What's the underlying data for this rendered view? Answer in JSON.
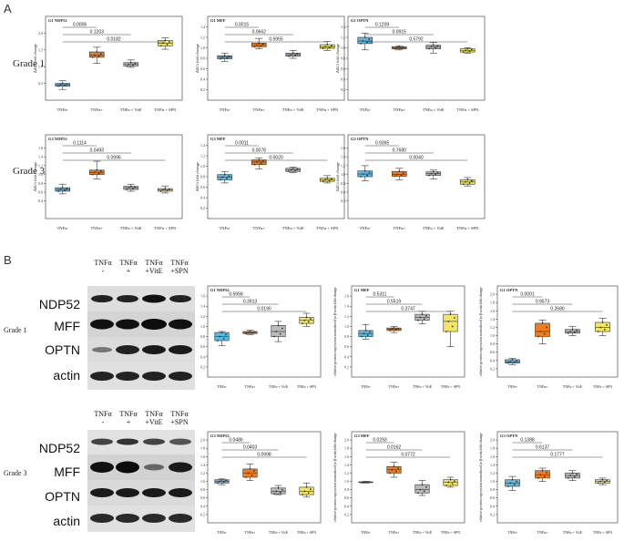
{
  "panel_labels": {
    "a": "A",
    "b": "B"
  },
  "grade_labels": {
    "g1": "Grade 1",
    "g3": "Grade 3"
  },
  "western_blot": {
    "header_top": [
      "TNFα",
      "TNFα",
      "TNFα",
      "TNFα"
    ],
    "header_bottom": [
      "-",
      "+",
      "+VitE",
      "+SPN"
    ],
    "proteins": [
      "NDP52",
      "MFF",
      "OPTN",
      "actin"
    ]
  },
  "colors": {
    "tnf_minus": "#5bbbe6",
    "tnf_plus": "#f07c1b",
    "tnf_vite": "#bbbbbb",
    "tnf_spn": "#f2e75f"
  },
  "chart_data": [
    {
      "type": "box",
      "panel": "A",
      "grade": "Grade 1",
      "title": "G1 NDP52",
      "ylabel": "ΔΔCt fold change",
      "categories": [
        "TNFα-",
        "TNFα+",
        "TNFα + VitE",
        "TNFα + SPN"
      ],
      "ylim": [
        0,
        2.5
      ],
      "yticks": [
        0.5,
        1.0,
        1.5,
        2.0
      ],
      "boxes": [
        {
          "min": 0.32,
          "q1": 0.42,
          "median": 0.46,
          "q3": 0.5,
          "max": 0.58
        },
        {
          "min": 1.1,
          "q1": 1.28,
          "median": 1.34,
          "q3": 1.44,
          "max": 1.58
        },
        {
          "min": 0.98,
          "q1": 1.02,
          "median": 1.07,
          "q3": 1.12,
          "max": 1.2
        },
        {
          "min": 1.52,
          "q1": 1.62,
          "median": 1.7,
          "q3": 1.78,
          "max": 1.86
        }
      ],
      "comparisons": [
        {
          "from": 0,
          "to": 1,
          "p": "0.0006"
        },
        {
          "from": 0,
          "to": 2,
          "p": "0.1203"
        },
        {
          "from": 0,
          "to": 3,
          "p": "0.0182"
        }
      ]
    },
    {
      "type": "box",
      "panel": "A",
      "grade": "Grade 1",
      "title": "G1 MFF",
      "ylabel": "ΔΔCt fold change",
      "categories": [
        "TNFα-",
        "TNFα+",
        "TNFα + VitE",
        "TNFα + SPN"
      ],
      "ylim": [
        0,
        1.6
      ],
      "yticks": [
        0.2,
        0.4,
        0.6,
        0.8,
        1.0,
        1.2,
        1.4
      ],
      "boxes": [
        {
          "min": 0.74,
          "q1": 0.79,
          "median": 0.82,
          "q3": 0.85,
          "max": 0.9
        },
        {
          "min": 0.98,
          "q1": 1.02,
          "median": 1.05,
          "q3": 1.09,
          "max": 1.18
        },
        {
          "min": 0.8,
          "q1": 0.84,
          "median": 0.87,
          "q3": 0.9,
          "max": 0.95
        },
        {
          "min": 0.95,
          "q1": 0.99,
          "median": 1.02,
          "q3": 1.06,
          "max": 1.12
        }
      ],
      "comparisons": [
        {
          "from": 0,
          "to": 1,
          "p": "0.0015"
        },
        {
          "from": 0,
          "to": 2,
          "p": "0.0662"
        },
        {
          "from": 0,
          "to": 3,
          "p": "0.5955"
        }
      ]
    },
    {
      "type": "box",
      "panel": "A",
      "grade": "Grade 1",
      "title": "G1 OPTN",
      "ylabel": "ΔΔCt fold change",
      "categories": [
        "TNFα-",
        "TNFα+",
        "TNFα + VitE",
        "TNFα + SPN"
      ],
      "ylim": [
        0,
        1.6
      ],
      "yticks": [
        0.2,
        0.4,
        0.6,
        0.8,
        1.0,
        1.2,
        1.4
      ],
      "boxes": [
        {
          "min": 0.96,
          "q1": 1.08,
          "median": 1.13,
          "q3": 1.2,
          "max": 1.28
        },
        {
          "min": 0.96,
          "q1": 0.98,
          "median": 1.0,
          "q3": 1.02,
          "max": 1.04
        },
        {
          "min": 0.9,
          "q1": 0.98,
          "median": 1.02,
          "q3": 1.05,
          "max": 1.1
        },
        {
          "min": 0.9,
          "q1": 0.92,
          "median": 0.95,
          "q3": 0.98,
          "max": 1.0
        }
      ],
      "comparisons": [
        {
          "from": 0,
          "to": 1,
          "p": "0.1209"
        },
        {
          "from": 0,
          "to": 2,
          "p": "0.0915"
        },
        {
          "from": 0,
          "to": 3,
          "p": "0.5792"
        }
      ]
    },
    {
      "type": "box",
      "panel": "A",
      "grade": "Grade 3",
      "title": "G3 NDP52",
      "ylabel": "ΔΔCt fold change",
      "categories": [
        "TNFα-",
        "TNFα+",
        "TNFα + VitE",
        "TNFα + SPN"
      ],
      "ylim": [
        0,
        1.9
      ],
      "yticks": [
        0.4,
        0.6,
        0.8,
        1.0,
        1.2,
        1.4,
        1.6
      ],
      "boxes": [
        {
          "min": 0.56,
          "q1": 0.62,
          "median": 0.66,
          "q3": 0.7,
          "max": 0.78
        },
        {
          "min": 0.9,
          "q1": 1.0,
          "median": 1.05,
          "q3": 1.1,
          "max": 1.3
        },
        {
          "min": 0.62,
          "q1": 0.66,
          "median": 0.7,
          "q3": 0.73,
          "max": 0.78
        },
        {
          "min": 0.58,
          "q1": 0.62,
          "median": 0.65,
          "q3": 0.68,
          "max": 0.74
        }
      ],
      "comparisons": [
        {
          "from": 0,
          "to": 1,
          "p": "0.1114"
        },
        {
          "from": 0,
          "to": 2,
          "p": "0.0493"
        },
        {
          "from": 0,
          "to": 3,
          "p": "0.0996"
        }
      ]
    },
    {
      "type": "box",
      "panel": "A",
      "grade": "Grade 3",
      "title": "G3 MFF",
      "ylabel": "ΔΔCt fold change",
      "categories": [
        "TNFα-",
        "TNFα+",
        "TNFα + VitE",
        "TNFα + SPN"
      ],
      "ylim": [
        0,
        1.6
      ],
      "yticks": [
        0.2,
        0.4,
        0.6,
        0.8,
        1.0,
        1.2,
        1.4
      ],
      "boxes": [
        {
          "min": 0.68,
          "q1": 0.74,
          "median": 0.79,
          "q3": 0.84,
          "max": 0.9
        },
        {
          "min": 0.95,
          "q1": 1.03,
          "median": 1.08,
          "q3": 1.12,
          "max": 1.16
        },
        {
          "min": 0.88,
          "q1": 0.9,
          "median": 0.93,
          "q3": 0.96,
          "max": 0.98
        },
        {
          "min": 0.68,
          "q1": 0.71,
          "median": 0.74,
          "q3": 0.77,
          "max": 0.82
        }
      ],
      "comparisons": [
        {
          "from": 0,
          "to": 1,
          "p": "0.0011"
        },
        {
          "from": 0,
          "to": 2,
          "p": "0.0078"
        },
        {
          "from": 0,
          "to": 3,
          "p": "0.0020"
        }
      ]
    },
    {
      "type": "box",
      "panel": "A",
      "grade": "Grade 3",
      "title": "G3 OPTN",
      "ylabel": "ΔΔCt fold change",
      "categories": [
        "TNFα-",
        "TNFα+",
        "TNFα + VitE",
        "TNFα + SPN"
      ],
      "ylim": [
        0,
        1.9
      ],
      "yticks": [
        0.4,
        0.6,
        0.8,
        1.0,
        1.2,
        1.4,
        1.6
      ],
      "boxes": [
        {
          "min": 0.86,
          "q1": 0.95,
          "median": 1.01,
          "q3": 1.08,
          "max": 1.2
        },
        {
          "min": 0.88,
          "q1": 0.96,
          "median": 1.0,
          "q3": 1.07,
          "max": 1.14
        },
        {
          "min": 0.9,
          "q1": 0.98,
          "median": 1.02,
          "q3": 1.06,
          "max": 1.1
        },
        {
          "min": 0.74,
          "q1": 0.78,
          "median": 0.83,
          "q3": 0.88,
          "max": 0.93
        }
      ],
      "comparisons": [
        {
          "from": 0,
          "to": 1,
          "p": "0.9365"
        },
        {
          "from": 0,
          "to": 2,
          "p": "0.7680"
        },
        {
          "from": 0,
          "to": 3,
          "p": "0.0040"
        }
      ]
    },
    {
      "type": "box",
      "panel": "B",
      "grade": "Grade 1",
      "title": "G1 NDP52",
      "ylabel": "relative protein expression normalized to β-actin fold change",
      "categories": [
        "TNFα-",
        "TNFα+",
        "TNFα + VitE",
        "TNFα + SPN"
      ],
      "ylim": [
        0,
        1.8
      ],
      "yticks": [
        0.2,
        0.4,
        0.6,
        0.8,
        1.0,
        1.2,
        1.4,
        1.6
      ],
      "boxes": [
        {
          "min": 0.62,
          "q1": 0.72,
          "median": 0.8,
          "q3": 0.88,
          "max": 0.9
        },
        {
          "min": 0.84,
          "q1": 0.86,
          "median": 0.88,
          "q3": 0.9,
          "max": 0.93
        },
        {
          "min": 0.7,
          "q1": 0.8,
          "median": 0.9,
          "q3": 1.02,
          "max": 1.1
        },
        {
          "min": 1.0,
          "q1": 1.06,
          "median": 1.12,
          "q3": 1.18,
          "max": 1.26
        }
      ],
      "comparisons": [
        {
          "from": 0,
          "to": 1,
          "p": "0.5958"
        },
        {
          "from": 0,
          "to": 2,
          "p": "0.3913"
        },
        {
          "from": 0,
          "to": 3,
          "p": "0.0190"
        }
      ]
    },
    {
      "type": "box",
      "panel": "B",
      "grade": "Grade 1",
      "title": "G1 MFF",
      "ylabel": "relative protein expression normalized to β-actin fold change",
      "categories": [
        "TNFα-",
        "TNFα+",
        "TNFα + VitE",
        "TNFα + SPN"
      ],
      "ylim": [
        0,
        1.8
      ],
      "yticks": [
        0.2,
        0.4,
        0.6,
        0.8,
        1.0,
        1.2,
        1.4,
        1.6
      ],
      "boxes": [
        {
          "min": 0.75,
          "q1": 0.8,
          "median": 0.86,
          "q3": 0.92,
          "max": 1.04
        },
        {
          "min": 0.88,
          "q1": 0.92,
          "median": 0.95,
          "q3": 0.97,
          "max": 1.0
        },
        {
          "min": 1.05,
          "q1": 1.12,
          "median": 1.18,
          "q3": 1.24,
          "max": 1.3
        },
        {
          "min": 0.6,
          "q1": 0.9,
          "median": 1.1,
          "q3": 1.24,
          "max": 1.3
        }
      ],
      "comparisons": [
        {
          "from": 0,
          "to": 1,
          "p": "0.5311"
        },
        {
          "from": 0,
          "to": 2,
          "p": "0.5519"
        },
        {
          "from": 0,
          "to": 3,
          "p": "0.3747"
        }
      ]
    },
    {
      "type": "box",
      "panel": "B",
      "grade": "Grade 1",
      "title": "G1 OPTN",
      "ylabel": "relative protein expression normalized to β-actin fold change",
      "categories": [
        "TNFα-",
        "TNFα+",
        "TNFα + VitE",
        "TNFα + SPN"
      ],
      "ylim": [
        0,
        2.2
      ],
      "yticks": [
        0.2,
        0.4,
        0.6,
        0.8,
        1.0,
        1.2,
        1.4,
        1.6,
        1.8,
        2.0
      ],
      "boxes": [
        {
          "min": 0.3,
          "q1": 0.34,
          "median": 0.37,
          "q3": 0.42,
          "max": 0.45
        },
        {
          "min": 0.8,
          "q1": 0.98,
          "median": 1.1,
          "q3": 1.3,
          "max": 1.38
        },
        {
          "min": 1.0,
          "q1": 1.06,
          "median": 1.1,
          "q3": 1.15,
          "max": 1.22
        },
        {
          "min": 1.0,
          "q1": 1.1,
          "median": 1.2,
          "q3": 1.32,
          "max": 1.42
        }
      ],
      "comparisons": [
        {
          "from": 0,
          "to": 1,
          "p": "0.0001"
        },
        {
          "from": 0,
          "to": 2,
          "p": "0.9573"
        },
        {
          "from": 0,
          "to": 3,
          "p": "0.2680"
        }
      ]
    },
    {
      "type": "box",
      "panel": "B",
      "grade": "Grade 3",
      "title": "G3 NDP52",
      "ylabel": "relative protein expression normalized to β-actin fold change",
      "categories": [
        "TNFα-",
        "TNFα+",
        "TNFα + VitE",
        "TNFα + SPN"
      ],
      "ylim": [
        0,
        2.2
      ],
      "yticks": [
        0.2,
        0.4,
        0.6,
        0.8,
        1.0,
        1.2,
        1.4,
        1.6,
        1.8,
        2.0
      ],
      "boxes": [
        {
          "min": 0.92,
          "q1": 0.96,
          "median": 1.0,
          "q3": 1.04,
          "max": 1.06
        },
        {
          "min": 1.02,
          "q1": 1.1,
          "median": 1.2,
          "q3": 1.3,
          "max": 1.42
        },
        {
          "min": 0.68,
          "q1": 0.7,
          "median": 0.76,
          "q3": 0.84,
          "max": 0.9
        },
        {
          "min": 0.62,
          "q1": 0.68,
          "median": 0.76,
          "q3": 0.86,
          "max": 0.96
        }
      ],
      "comparisons": [
        {
          "from": 0,
          "to": 1,
          "p": "0.0486"
        },
        {
          "from": 0,
          "to": 2,
          "p": "0.0403"
        },
        {
          "from": 0,
          "to": 3,
          "p": "0.0998"
        }
      ]
    },
    {
      "type": "box",
      "panel": "B",
      "grade": "Grade 3",
      "title": "G3 MFF",
      "ylabel": "relative protein expression normalized to β-actin fold change",
      "categories": [
        "TNFα-",
        "TNFα+",
        "TNFα + VitE",
        "TNFα + SPN"
      ],
      "ylim": [
        0,
        2.2
      ],
      "yticks": [
        0.2,
        0.4,
        0.6,
        0.8,
        1.0,
        1.2,
        1.4,
        1.6,
        1.8,
        2.0
      ],
      "boxes": [
        {
          "min": 0.96,
          "q1": 0.97,
          "median": 0.98,
          "q3": 0.99,
          "max": 1.0
        },
        {
          "min": 1.1,
          "q1": 1.2,
          "median": 1.28,
          "q3": 1.36,
          "max": 1.46
        },
        {
          "min": 0.66,
          "q1": 0.72,
          "median": 0.8,
          "q3": 0.92,
          "max": 1.02
        },
        {
          "min": 0.86,
          "q1": 0.9,
          "median": 0.98,
          "q3": 1.04,
          "max": 1.1
        }
      ],
      "comparisons": [
        {
          "from": 0,
          "to": 1,
          "p": "0.0293"
        },
        {
          "from": 0,
          "to": 2,
          "p": "0.0162"
        },
        {
          "from": 0,
          "to": 3,
          "p": "0.0772"
        }
      ]
    },
    {
      "type": "box",
      "panel": "B",
      "grade": "Grade 3",
      "title": "G3 OPTN",
      "ylabel": "relative protein expression normalized to β-actin fold change",
      "categories": [
        "TNFα-",
        "TNFα+",
        "TNFα + VitE",
        "TNFα + SPN"
      ],
      "ylim": [
        0,
        2.2
      ],
      "yticks": [
        0.2,
        0.4,
        0.6,
        0.8,
        1.0,
        1.2,
        1.4,
        1.6,
        1.8,
        2.0
      ],
      "boxes": [
        {
          "min": 0.78,
          "q1": 0.88,
          "median": 0.96,
          "q3": 1.04,
          "max": 1.12
        },
        {
          "min": 1.0,
          "q1": 1.08,
          "median": 1.16,
          "q3": 1.26,
          "max": 1.32
        },
        {
          "min": 1.02,
          "q1": 1.08,
          "median": 1.14,
          "q3": 1.2,
          "max": 1.26
        },
        {
          "min": 0.92,
          "q1": 0.96,
          "median": 1.0,
          "q3": 1.04,
          "max": 1.08
        }
      ],
      "comparisons": [
        {
          "from": 0,
          "to": 1,
          "p": "0.1388"
        },
        {
          "from": 0,
          "to": 2,
          "p": "0.6137"
        },
        {
          "from": 0,
          "to": 3,
          "p": "0.1777"
        }
      ]
    }
  ]
}
